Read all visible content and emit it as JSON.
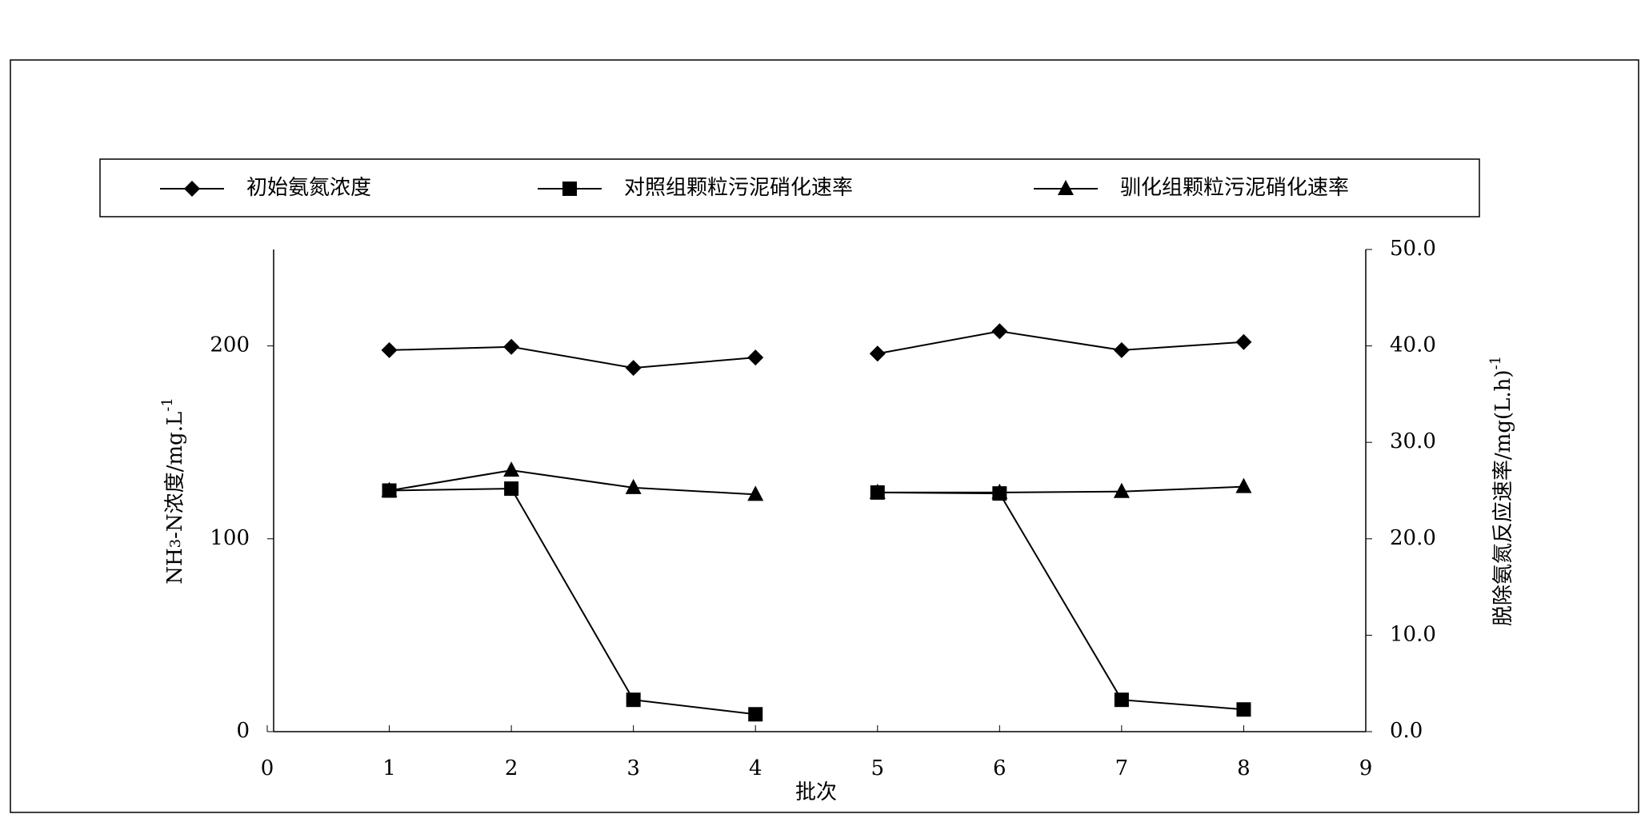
{
  "chart_data": {
    "type": "line",
    "x_label": "批次",
    "y_label": [
      "NH",
      "3",
      "-N浓度/mg.L",
      "-1"
    ],
    "y2_label": [
      "脱除氨氮反应速率/mg(L.h)",
      "-1"
    ],
    "x": [
      1,
      2,
      3,
      4,
      null,
      5,
      6,
      7,
      8
    ],
    "xlim": [
      0,
      9
    ],
    "xticks": [
      0,
      1,
      2,
      3,
      4,
      5,
      6,
      7,
      8,
      9
    ],
    "ylim": [
      0,
      250
    ],
    "yticks": [
      0,
      100,
      200
    ],
    "y2lim": [
      0,
      50
    ],
    "y2ticks": [
      {
        "value": 0,
        "label": "0.0"
      },
      {
        "value": 10,
        "label": "10.0"
      },
      {
        "value": 20,
        "label": "20.0"
      },
      {
        "value": 30,
        "label": "30.0"
      },
      {
        "value": 40,
        "label": "40.0"
      },
      {
        "value": 50,
        "label": "50.0"
      }
    ],
    "color": "#000000",
    "series": [
      {
        "name": "初始氨氮浓度",
        "marker": "diamond",
        "values": [
          197.8,
          199.5,
          188.6,
          194,
          null,
          196,
          207.6,
          197.8,
          202
        ]
      },
      {
        "name": "对照组颗粒污泥硝化速率",
        "marker": "square",
        "axis": "y2",
        "values": [
          25.0,
          25.2,
          3.3,
          1.8,
          null,
          24.8,
          24.7,
          3.3,
          2.3
        ]
      },
      {
        "name": "驯化组颗粒污泥硝化速率",
        "marker": "triangle",
        "axis": "y2",
        "values": [
          25.0,
          27.1,
          25.3,
          24.6,
          null,
          24.8,
          24.8,
          24.9,
          25.4
        ]
      }
    ]
  }
}
